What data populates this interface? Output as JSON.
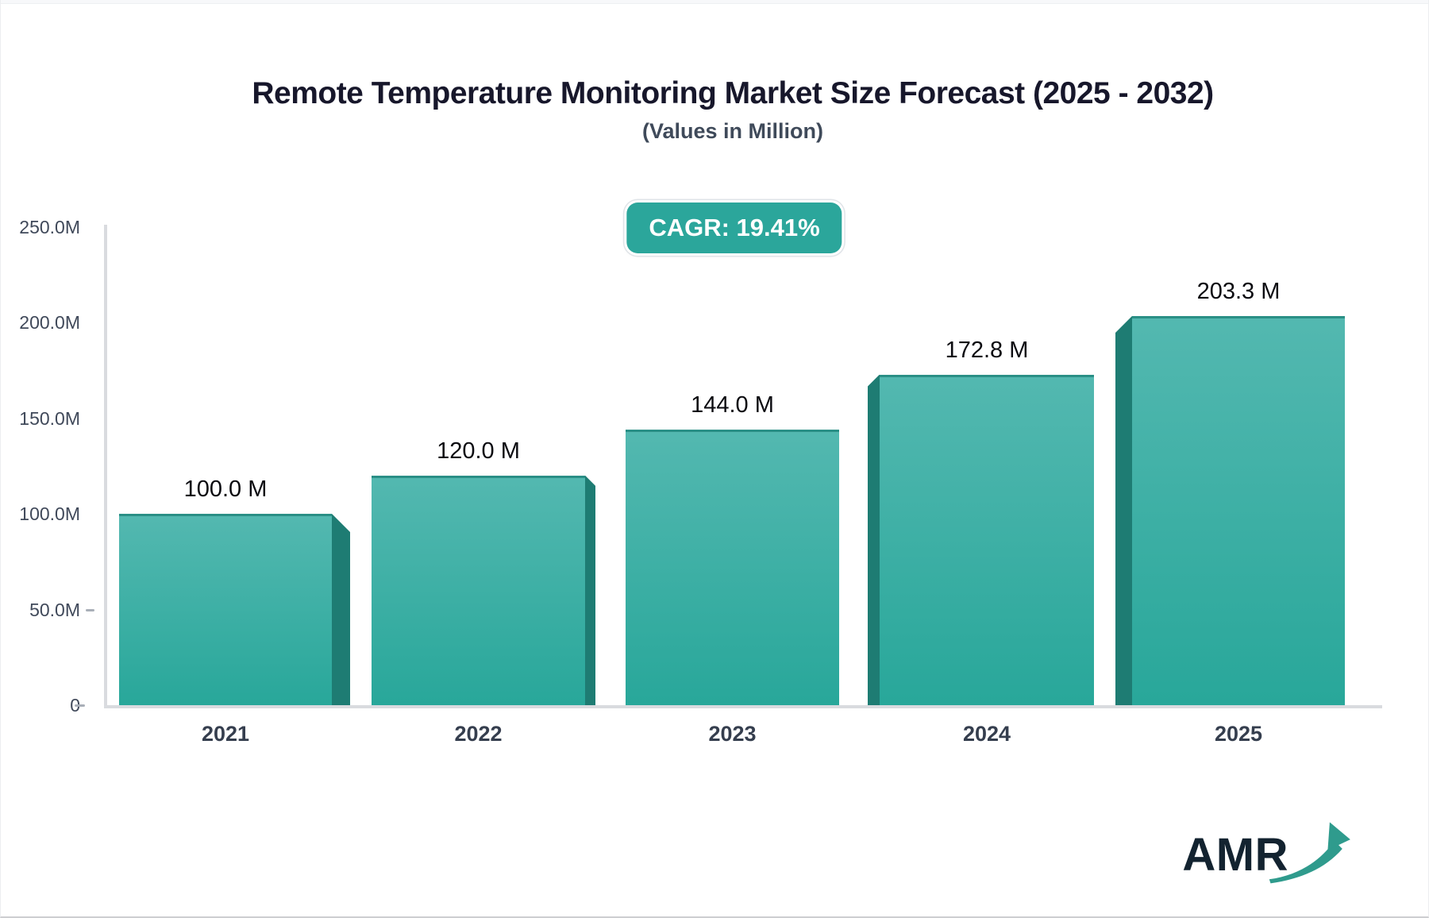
{
  "header": {
    "title": "Remote Temperature Monitoring Market Size Forecast (2025 - 2032)",
    "subtitle": "(Values in Million)"
  },
  "cagr_badge": {
    "label": "CAGR: 19.41%"
  },
  "chart_data": {
    "type": "bar",
    "title": "Remote Temperature Monitoring Market Size Forecast (2025 - 2032)",
    "subtitle": "(Values in Million)",
    "cagr_percent": 19.41,
    "unit": "Million",
    "categories": [
      "2021",
      "2022",
      "2023",
      "2024",
      "2025"
    ],
    "values": [
      100.0,
      120.0,
      144.0,
      172.8,
      203.3
    ],
    "bar_labels": [
      "100.0 M",
      "120.0 M",
      "144.0 M",
      "172.8 M",
      "203.3 M"
    ],
    "ylim": [
      0,
      250
    ],
    "yticks": [
      {
        "value": 250,
        "label": "250.0M"
      },
      {
        "value": 200,
        "label": "200.0M"
      },
      {
        "value": 150,
        "label": "150.0M"
      },
      {
        "value": 100,
        "label": "100.0M"
      },
      {
        "value": 50,
        "label": "50.0M"
      },
      {
        "value": 0,
        "label": "0"
      }
    ],
    "grid": false,
    "legend": false,
    "colors": {
      "bar_top": "#53b8b0",
      "bar_bottom": "#28a79a",
      "bar_side": "#1e7c73",
      "axis_line": "#d9dbdf"
    }
  },
  "logo": {
    "text": "AMR",
    "arrow_color": "#2f9b8d"
  }
}
